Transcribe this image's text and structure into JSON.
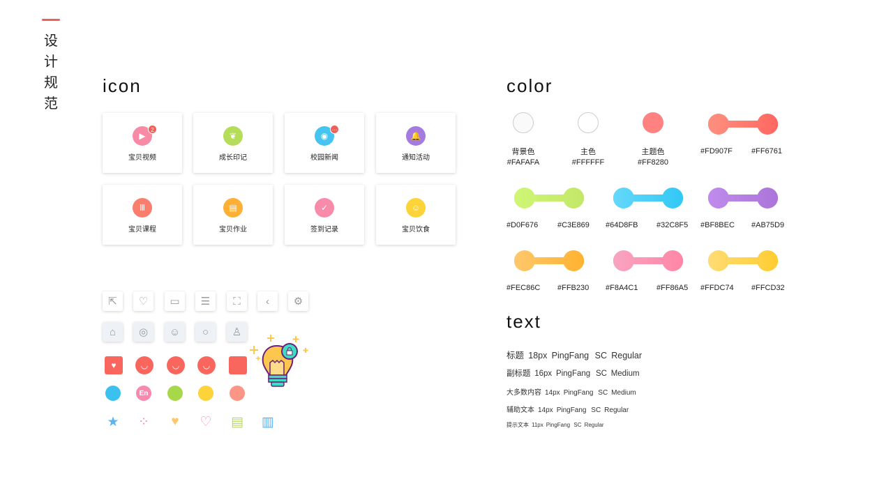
{
  "page": {
    "title": "设计规范"
  },
  "icon_section": {
    "heading": "icon",
    "cards": [
      {
        "label": "宝贝视频",
        "icon": "video-icon",
        "color": "#F98AA6",
        "badge": "2"
      },
      {
        "label": "成长印记",
        "icon": "sprout-icon",
        "color": "#B6DD5A"
      },
      {
        "label": "校园新闻",
        "icon": "rss-icon",
        "color": "#46C4F0",
        "badge": "···"
      },
      {
        "label": "通知活动",
        "icon": "bell-icon",
        "color": "#A57BE0"
      },
      {
        "label": "宝贝课程",
        "icon": "books-icon",
        "color": "#F97E6E"
      },
      {
        "label": "宝贝作业",
        "icon": "homework-icon",
        "color": "#FDB035"
      },
      {
        "label": "签到记录",
        "icon": "checkin-calendar-icon",
        "color": "#F88AAA"
      },
      {
        "label": "宝贝饮食",
        "icon": "food-icon",
        "color": "#FDD33A"
      }
    ],
    "outline_icons": [
      "share-icon",
      "heart-icon",
      "comment-icon",
      "menu-icon",
      "scan-icon",
      "back-icon",
      "gear-icon"
    ],
    "gray_icons": [
      "home-icon",
      "planet-icon",
      "baby-face-icon",
      "chat-icon",
      "user-icon"
    ],
    "red_icons": [
      "home-icon",
      "planet-icon",
      "baby-face-icon",
      "chat-icon",
      "user-icon"
    ],
    "round_icons": [
      {
        "icon": "baby-avatar-icon",
        "color": "#3BC0F0"
      },
      {
        "icon": "english-icon",
        "color": "#F88AB0",
        "text": "En"
      },
      {
        "icon": "sun-icon",
        "color": "#A7D84A"
      },
      {
        "icon": "radio-icon",
        "color": "#FDD33A"
      },
      {
        "icon": "search-icon",
        "color": "#FB9585"
      }
    ],
    "small_icons": [
      {
        "icon": "star-house-icon",
        "color": "#5AB4F0"
      },
      {
        "icon": "loading-dots-icon",
        "color": "#F88AB0"
      },
      {
        "icon": "heart-icon",
        "color": "#FDC86C"
      },
      {
        "icon": "user-heart-icon",
        "color": "#F88AB0"
      },
      {
        "icon": "message-icon",
        "color": "#B6DD5A"
      },
      {
        "icon": "inbox-icon",
        "color": "#5AB4F0"
      }
    ],
    "illustration": "lightbulb-lock-icon"
  },
  "color_section": {
    "heading": "color",
    "solids": [
      {
        "name": "背景色",
        "hex": "#FAFAFA"
      },
      {
        "name": "主色",
        "hex": "#FFFFFF"
      },
      {
        "name": "主题色",
        "hex": "#FF8280"
      }
    ],
    "gradients": [
      [
        "#FD907F",
        "#FF6761"
      ],
      [
        "#D0F676",
        "#C3E869"
      ],
      [
        "#64D8FB",
        "#32C8F5"
      ],
      [
        "#BF8BEC",
        "#AB75D9"
      ],
      [
        "#FEC86C",
        "#FFB230"
      ],
      [
        "#F8A4C1",
        "#FF86A5"
      ],
      [
        "#FFDC74",
        "#FFCD32"
      ]
    ]
  },
  "text_section": {
    "heading": "text",
    "styles": [
      {
        "name": "标题",
        "size": "18px",
        "font": "PingFang SC",
        "weight": "Regular"
      },
      {
        "name": "副标题",
        "size": "16px",
        "font": "PingFang SC",
        "weight": "Medium"
      },
      {
        "name": "大多数内容",
        "size": "14px",
        "font": "PingFang SC",
        "weight": "Medium"
      },
      {
        "name": "辅助文本",
        "size": "14px",
        "font": "PingFang SC",
        "weight": "Regular"
      },
      {
        "name": "提示文本",
        "size": "11px",
        "font": "PingFang SC",
        "weight": "Regular"
      }
    ]
  }
}
